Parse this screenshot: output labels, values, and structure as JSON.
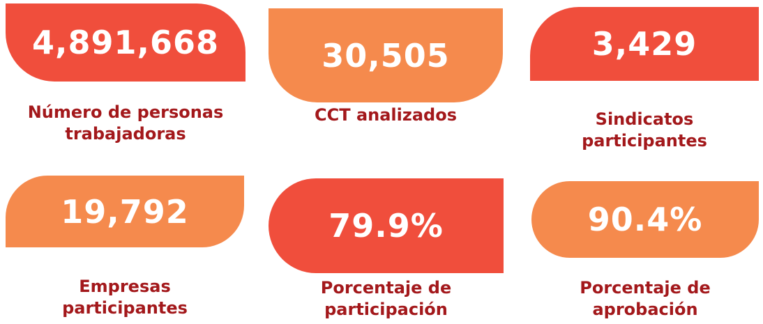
{
  "stats": [
    {
      "value": "4,891,668",
      "label": [
        "Número de personas",
        "trabajadoras"
      ]
    },
    {
      "value": "30,505",
      "label": [
        "CCT analizados"
      ]
    },
    {
      "value": "3,429",
      "label": [
        "Sindicatos",
        "participantes"
      ]
    },
    {
      "value": "19,792",
      "label": [
        "Empresas",
        "participantes"
      ]
    },
    {
      "value": "79.9%",
      "label": [
        "Porcentaje de",
        "participación"
      ]
    },
    {
      "value": "90.4%",
      "label": [
        "Porcentaje de",
        "aprobación"
      ]
    }
  ]
}
